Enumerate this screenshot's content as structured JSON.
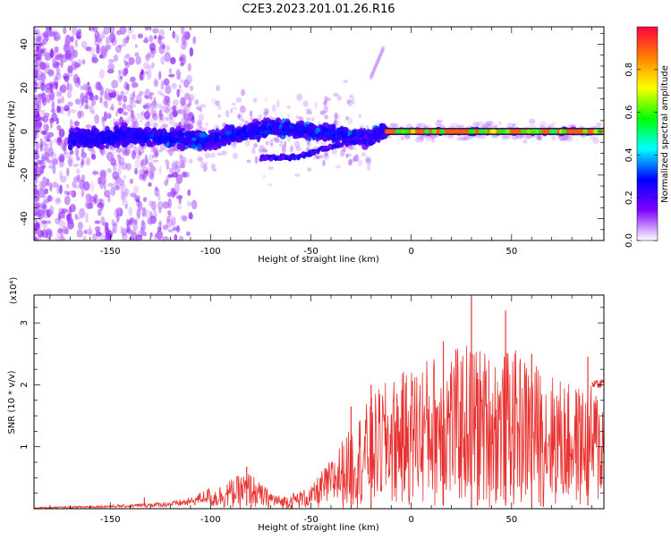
{
  "title": "C2E3.2023.201.01.26.R16",
  "chart_data": [
    {
      "type": "heatmap",
      "xlabel": "Height of straight line (km)",
      "ylabel": "Frequency (Hz)",
      "xlim": [
        -188,
        96
      ],
      "ylim": [
        -50,
        48
      ],
      "x_ticks": [
        -150,
        -100,
        -50,
        0,
        50
      ],
      "y_ticks": [
        -40,
        -20,
        0,
        20,
        40
      ],
      "colorbar": {
        "label": "Normalized spectral amplitude",
        "range": [
          0.0,
          1.0
        ],
        "ticks": [
          "0.0",
          "0.2",
          "0.4",
          "0.6",
          "0.8"
        ],
        "tick_values": [
          0.0,
          0.2,
          0.4,
          0.6,
          0.8
        ],
        "colormap": "rainbow",
        "colors": [
          "#ffffff",
          "#8000ff",
          "#0000ff",
          "#00ffff",
          "#00ff00",
          "#ffff00",
          "#ff8000",
          "#ff0040"
        ]
      },
      "ridge_center": [
        [
          -160,
          -3
        ],
        [
          -140,
          -2
        ],
        [
          -120,
          -3
        ],
        [
          -100,
          -4
        ],
        [
          -90,
          -2
        ],
        [
          -80,
          0
        ],
        [
          -70,
          2
        ],
        [
          -60,
          1
        ],
        [
          -50,
          0
        ],
        [
          -40,
          -1
        ],
        [
          -30,
          -2
        ],
        [
          -20,
          -3
        ],
        [
          -15,
          0
        ],
        [
          0,
          0
        ],
        [
          50,
          0
        ],
        [
          96,
          0
        ]
      ],
      "lower_branch": [
        [
          -75,
          -12
        ],
        [
          -60,
          -12
        ],
        [
          -50,
          -10
        ],
        [
          -40,
          -7
        ],
        [
          -30,
          -5
        ],
        [
          -20,
          -2
        ]
      ],
      "streak": [
        [
          -20,
          25
        ],
        [
          -14,
          38
        ]
      ],
      "peak_line": {
        "x_start": -13,
        "x_end": 96,
        "y": 0,
        "amplitude": 0.9
      }
    },
    {
      "type": "line",
      "xlabel": "Height of straight line (km)",
      "ylabel": "SNR (10 * v/v)",
      "y_scale_label": "(x10⁴)",
      "xlim": [
        -188,
        96
      ],
      "ylim": [
        0,
        3.45
      ],
      "x_ticks": [
        -150,
        -100,
        -50,
        0,
        50
      ],
      "y_ticks": [
        1,
        2,
        3
      ],
      "color": "#e8312f",
      "envelope": {
        "x": [
          -188,
          -160,
          -140,
          -130,
          -120,
          -110,
          -100,
          -92,
          -85,
          -80,
          -75,
          -70,
          -65,
          -60,
          -55,
          -50,
          -45,
          -40,
          -35,
          -30,
          -25,
          -20,
          -15,
          -10,
          -5,
          0,
          5,
          10,
          15,
          20,
          25,
          30,
          35,
          40,
          45,
          50,
          55,
          60,
          65,
          70,
          75,
          80,
          85,
          90,
          96
        ],
        "y": [
          0.02,
          0.04,
          0.06,
          0.08,
          0.1,
          0.15,
          0.3,
          0.45,
          0.55,
          0.6,
          0.4,
          0.3,
          0.2,
          0.25,
          0.3,
          0.35,
          0.6,
          0.8,
          1.1,
          1.3,
          1.6,
          1.8,
          2.0,
          2.1,
          2.2,
          2.3,
          2.4,
          2.5,
          2.55,
          2.6,
          2.6,
          2.75,
          2.6,
          2.55,
          2.5,
          2.6,
          2.5,
          2.4,
          2.3,
          2.2,
          2.1,
          2.0,
          2.0,
          2.0,
          1.9
        ]
      },
      "spikes": [
        [
          -133,
          0.18
        ],
        [
          -82,
          0.68
        ],
        [
          -30,
          1.65
        ],
        [
          -20,
          2.0
        ],
        [
          16,
          2.7
        ],
        [
          30,
          3.4
        ],
        [
          33,
          2.2
        ],
        [
          47,
          3.2
        ],
        [
          60,
          2.5
        ],
        [
          88,
          2.45
        ]
      ]
    }
  ]
}
